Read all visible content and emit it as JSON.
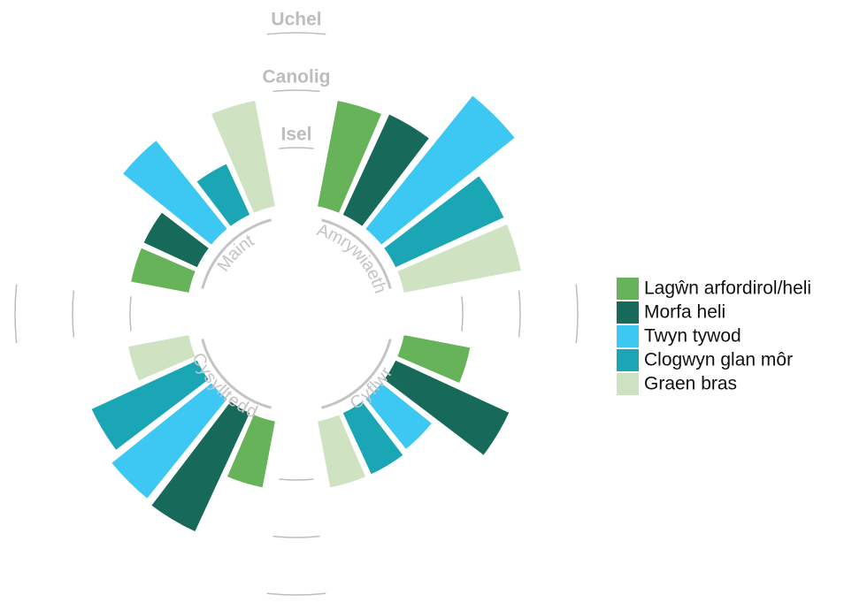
{
  "chart_data": {
    "type": "radial_bar",
    "categories": [
      "Amrywiaeth",
      "Cyflwr",
      "Cysylltedd",
      "Maint"
    ],
    "series": [
      {
        "name": "Lagŵn arfordirol/heli",
        "color": "#66b35a",
        "values": [
          1.9,
          1.2,
          1.2,
          1.05
        ]
      },
      {
        "name": "Morfa heli",
        "color": "#17695a",
        "values": [
          1.95,
          2.2,
          2.3,
          1.05
        ]
      },
      {
        "name": "Twyn tywod",
        "color": "#3cc8f2",
        "values": [
          3.0,
          1.15,
          2.25,
          2.0
        ]
      },
      {
        "name": "Clogwyn glan môr",
        "color": "#1aa6b4",
        "values": [
          2.1,
          1.2,
          2.05,
          1.0
        ]
      },
      {
        "name": "Graen bras",
        "color": "#cfe3c3",
        "values": [
          2.1,
          1.2,
          1.1,
          1.9
        ]
      }
    ],
    "ylim": [
      0,
      3
    ],
    "yticks": [
      {
        "value": 1,
        "label": "Isel"
      },
      {
        "value": 2,
        "label": "Canolig"
      },
      {
        "value": 3,
        "label": "Uchel"
      }
    ],
    "legend": "right"
  }
}
